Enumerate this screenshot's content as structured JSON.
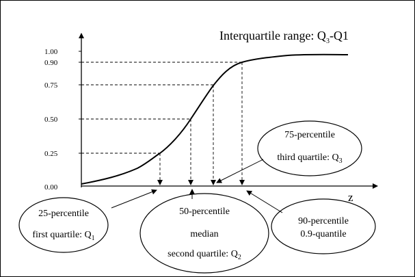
{
  "title": {
    "text": "Interquartile range: Q",
    "sub1": "3",
    "dash": "-Q1"
  },
  "axis": {
    "x_label": "z",
    "y_ticks": [
      "1.00",
      "0.90",
      "0.75",
      "0.50",
      "0.25",
      "0.00"
    ]
  },
  "bubbles": {
    "p25": {
      "line1": "25-percentile",
      "line2_main": "first quartile: Q",
      "line2_sub": "1"
    },
    "p50": {
      "line1": "50-percentile",
      "line2": "median",
      "line3_main": "second quartile: Q",
      "line3_sub": "2"
    },
    "p75": {
      "line1": "75-percentile",
      "line2_main": "third quartile: Q",
      "line2_sub": "3"
    },
    "p90": {
      "line1": "90-percentile",
      "line2": "0.9-quantile"
    }
  },
  "chart_data": {
    "type": "line",
    "xlabel": "z",
    "ylabel": "",
    "ylim": [
      0,
      1
    ],
    "y_ticks": [
      0,
      0.25,
      0.5,
      0.75,
      0.9,
      1.0
    ],
    "quantiles": [
      {
        "p": 0.25,
        "label": "25-percentile"
      },
      {
        "p": 0.5,
        "label": "50-percentile"
      },
      {
        "p": 0.75,
        "label": "75-percentile"
      },
      {
        "p": 0.9,
        "label": "90-percentile"
      }
    ],
    "series": [
      {
        "values": [
          0.02,
          0.05,
          0.1,
          0.18,
          0.25,
          0.36,
          0.5,
          0.65,
          0.78,
          0.85,
          0.9,
          0.93,
          0.95,
          0.96,
          0.96
        ]
      }
    ]
  }
}
